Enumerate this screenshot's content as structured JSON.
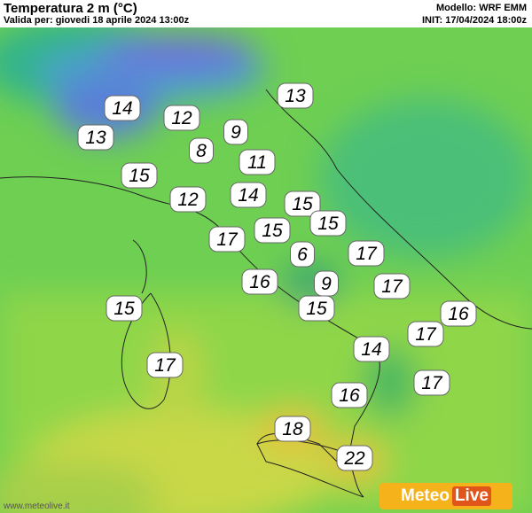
{
  "header": {
    "title": "Temperatura 2 m (°C)",
    "valid": "Valida per: giovedi 18 aprile 2024 13:00z",
    "model": "Modello: WRF EMM",
    "init": "INIT: 17/04/2024 18:00z"
  },
  "labels": [
    14,
    12,
    13,
    13,
    9,
    8,
    11,
    15,
    12,
    14,
    15,
    15,
    15,
    17,
    6,
    17,
    16,
    9,
    17,
    15,
    15,
    16,
    17,
    14,
    17,
    17,
    16,
    18,
    22
  ],
  "footer": {
    "url": "www.meteolive.it",
    "logo_a": "Meteo",
    "logo_b": "Live"
  }
}
